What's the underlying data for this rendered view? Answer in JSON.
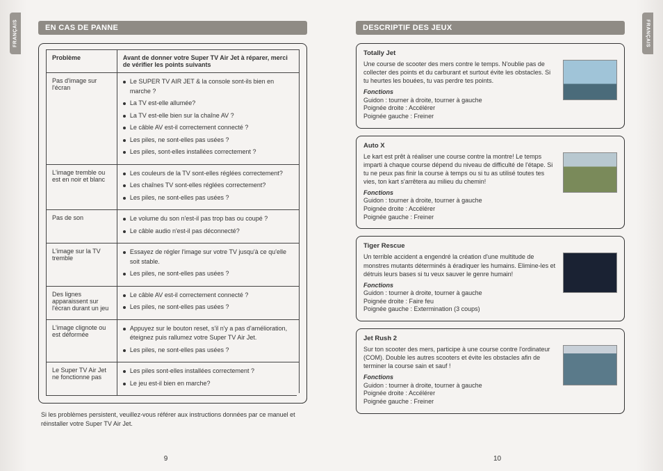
{
  "side_tab_text": "FRANÇAIS",
  "left": {
    "header": "EN CAS DE PANNE",
    "table": {
      "col1": "Problème",
      "col2": "Avant de donner votre Super TV Air Jet à réparer, merci de vérifier les points suivants",
      "rows": [
        {
          "problem": "Pas d'image sur l'écran",
          "checks": [
            "Le SUPER TV AIR JET & la console sont-ils bien en marche ?",
            "La TV est-elle allumée?",
            "La TV est-elle bien sur la chaîne AV ?",
            "Le câble AV est-il correctement connecté ?",
            "Les piles, ne sont-elles pas usées ?",
            "Les piles, sont-elles installées correctement ?"
          ]
        },
        {
          "problem": "L'image tremble ou est en noir et blanc",
          "checks": [
            "Les couleurs de la TV sont-elles réglées correctement?",
            "Les chaînes TV sont-elles réglées correctement?",
            "Les piles, ne sont-elles pas usées ?"
          ]
        },
        {
          "problem": "Pas de son",
          "checks": [
            "Le volume du son n'est-il pas trop bas ou coupé ?",
            "Le câble audio n'est-il pas déconnecté?"
          ]
        },
        {
          "problem": "L'image sur la TV tremble",
          "checks": [
            "Essayez de régler l'image sur votre TV jusqu'à ce qu'elle soit stable.",
            "Les piles, ne sont-elles pas usées ?"
          ]
        },
        {
          "problem": "Des lignes apparaissent sur l'écran durant un jeu",
          "checks": [
            "Le câble AV est-il correctement connecté ?",
            "Les piles, ne sont-elles pas usées ?"
          ]
        },
        {
          "problem": "L'image clignote ou est déformée",
          "checks": [
            "Appuyez sur le bouton reset, s'il n'y a pas d'amélioration, éteignez puis rallumez votre Super TV Air Jet.",
            "Les piles, ne sont-elles pas usées ?"
          ]
        },
        {
          "problem": "Le Super TV Air Jet ne fonctionne pas",
          "checks": [
            "Les piles sont-elles installées correctement ?",
            "Le jeu est-il bien en marche?"
          ]
        }
      ]
    },
    "footnote": "Si les problèmes persistent, veuillez-vous référer aux instructions données par ce manuel et réinstaller votre Super TV Air Jet.",
    "pagenum": "9"
  },
  "right": {
    "header": "DESCRIPTIF DES JEUX",
    "fn_label": "Fonctions",
    "games": [
      {
        "title": "Totally Jet",
        "desc": "Une course de scooter des mers contre le temps. N'oublie pas de collecter des points et du carburant et surtout évite les obstacles. Si tu heurtes les bouées, tu vas perdre tes points.",
        "fn": [
          "Guidon : tourner à droite, tourner à gauche",
          "Poignée droite : Accélérer",
          "Poignée gauche : Freiner"
        ],
        "shot": "skyline"
      },
      {
        "title": "Auto X",
        "desc": "Le kart est prêt à réaliser une course contre la montre! Le temps imparti à chaque course dépend du niveau de difficulté de l'étape. Si tu ne peux pas finir la course à temps ou si tu as utilisé toutes tes vies, ton kart s'arrêtera au milieu du chemin!",
        "fn": [
          "Guidon : tourner à droite, tourner à gauche",
          "Poignée droite : Accélérer",
          "Poignée gauche : Freiner"
        ],
        "shot": "kart"
      },
      {
        "title": "Tiger Rescue",
        "desc": "Un terrible accident a engendré la création d'une multitude de monstres mutants déterminés à éradiquer les humains. Elimine-les et détruis leurs bases si tu veux sauver le genre humain!",
        "fn": [
          "Guidon : tourner à droite, tourner à gauche",
          "Poignée droite : Faire feu",
          "Poignée gauche : Extermination (3 coups)"
        ],
        "shot": "space"
      },
      {
        "title": "Jet Rush 2",
        "desc": "Sur ton scooter des mers, participe à une course contre l'ordinateur (COM). Double les autres scooters et évite les obstacles afin de terminer la course sain et sauf !",
        "fn": [
          "Guidon : tourner à droite, tourner à gauche",
          "Poignée droite : Accélérer",
          "Poignée gauche : Freiner"
        ],
        "shot": "water"
      }
    ],
    "pagenum": "10"
  },
  "colors": {
    "header_bg": "#8f8b85",
    "tab_bg": "#9a9691",
    "page_bg": "#f5f3f1",
    "border": "#333333"
  }
}
